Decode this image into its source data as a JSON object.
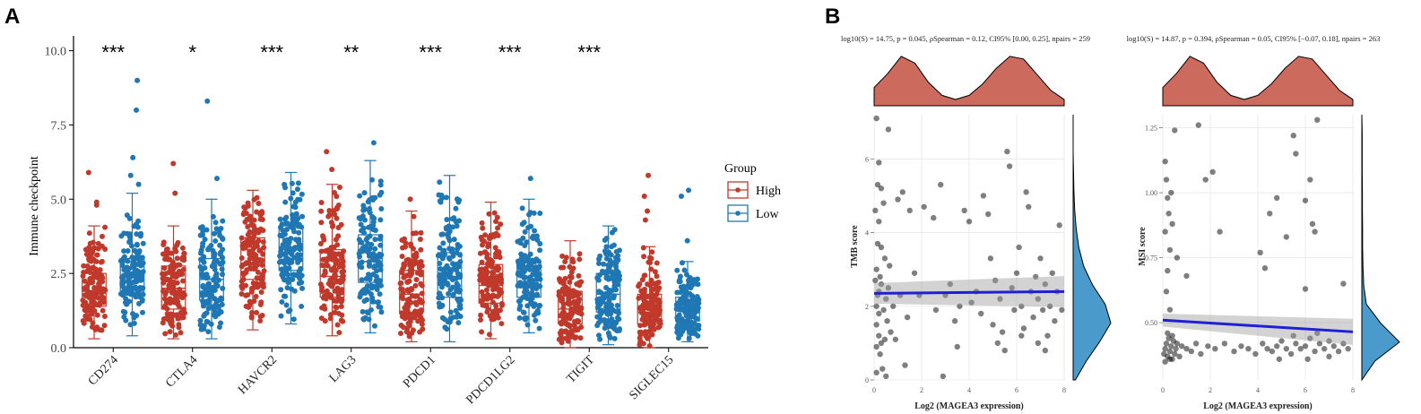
{
  "panels": {
    "a_label": "A",
    "b_label": "B"
  },
  "chart_data": [
    {
      "type": "box",
      "title": "",
      "xlabel": "",
      "ylabel": "Immune checkpoint",
      "ylim": [
        0,
        10.5
      ],
      "yticks": [
        0.0,
        2.5,
        5.0,
        7.5,
        10.0
      ],
      "ytick_labels": [
        "0.0",
        "2.5",
        "5.0",
        "7.5",
        "10.0"
      ],
      "categories": [
        "CD274",
        "CTLA4",
        "HAVCR2",
        "LAG3",
        "PDCD1",
        "PDCD1LG2",
        "TIGIT",
        "SIGLEC15"
      ],
      "significance": [
        "***",
        "*",
        "***",
        "**",
        "***",
        "***",
        "***",
        ""
      ],
      "legend": {
        "title": "Group",
        "entries": [
          "High",
          "Low"
        ],
        "position": "right"
      },
      "colors": {
        "High": "#C0392B",
        "Low": "#1F77B4"
      },
      "series": [
        {
          "name": "High",
          "boxes": [
            {
              "min": 0.3,
              "q1": 1.4,
              "median": 1.9,
              "q3": 2.5,
              "max": 4.1,
              "outliers": [
                4.8,
                4.9,
                5.9
              ]
            },
            {
              "min": 0.3,
              "q1": 1.3,
              "median": 2.0,
              "q3": 2.75,
              "max": 4.1,
              "outliers": [
                5.2,
                6.2
              ]
            },
            {
              "min": 0.6,
              "q1": 2.3,
              "median": 2.8,
              "q3": 3.7,
              "max": 5.3,
              "outliers": []
            },
            {
              "min": 0.4,
              "q1": 1.7,
              "median": 2.4,
              "q3": 3.3,
              "max": 5.5,
              "outliers": [
                6.0,
                6.6
              ]
            },
            {
              "min": 0.2,
              "q1": 1.2,
              "median": 1.8,
              "q3": 2.6,
              "max": 4.6,
              "outliers": [
                5.0
              ]
            },
            {
              "min": 0.3,
              "q1": 1.5,
              "median": 2.1,
              "q3": 2.8,
              "max": 4.9,
              "outliers": []
            },
            {
              "min": 0.0,
              "q1": 0.8,
              "median": 1.3,
              "q3": 1.9,
              "max": 3.6,
              "outliers": []
            },
            {
              "min": 0.0,
              "q1": 0.8,
              "median": 1.2,
              "q3": 1.8,
              "max": 3.4,
              "outliers": [
                4.3,
                4.6,
                5.1,
                5.8
              ]
            }
          ]
        },
        {
          "name": "Low",
          "boxes": [
            {
              "min": 0.4,
              "q1": 1.9,
              "median": 2.4,
              "q3": 3.0,
              "max": 5.2,
              "outliers": [
                5.5,
                5.8,
                6.4,
                8.0,
                9.0
              ]
            },
            {
              "min": 0.3,
              "q1": 1.6,
              "median": 2.3,
              "q3": 3.0,
              "max": 5.0,
              "outliers": [
                5.7,
                8.3
              ]
            },
            {
              "min": 0.8,
              "q1": 2.6,
              "median": 3.3,
              "q3": 4.1,
              "max": 5.9,
              "outliers": []
            },
            {
              "min": 0.5,
              "q1": 2.2,
              "median": 2.9,
              "q3": 3.8,
              "max": 6.3,
              "outliers": [
                6.9
              ]
            },
            {
              "min": 0.2,
              "q1": 1.7,
              "median": 2.4,
              "q3": 3.2,
              "max": 5.8,
              "outliers": []
            },
            {
              "min": 0.5,
              "q1": 1.7,
              "median": 2.4,
              "q3": 2.9,
              "max": 5.0,
              "outliers": [
                5.7
              ]
            },
            {
              "min": 0.1,
              "q1": 1.2,
              "median": 1.8,
              "q3": 2.5,
              "max": 4.1,
              "outliers": []
            },
            {
              "min": 0.2,
              "q1": 0.9,
              "median": 1.3,
              "q3": 1.7,
              "max": 2.9,
              "outliers": [
                3.6,
                5.1,
                5.3
              ]
            }
          ]
        }
      ]
    },
    {
      "type": "scatter",
      "title": "log10(S) = 14.75, p = 0.045, ρSpearman = 0.12, CI95% [0.00, 0.25], npairs = 259",
      "xlabel": "Log2 (MAGEA3 expression)",
      "ylabel": "TMB score",
      "xlim": [
        0,
        8
      ],
      "ylim": [
        0,
        7.2
      ],
      "xticks": [
        0,
        2,
        4,
        6,
        8
      ],
      "xtick_labels": [
        "0",
        "2",
        "4",
        "6",
        "8"
      ],
      "yticks": [
        0,
        2,
        4,
        6
      ],
      "ytick_labels": [
        "0",
        "2",
        "4",
        "6"
      ],
      "regression": {
        "x": [
          0,
          8
        ],
        "y": [
          2.35,
          2.4
        ],
        "ci": [
          0.28,
          0.42
        ]
      },
      "marginal_top": {
        "color": "#CD6A5E",
        "density": [
          0.35,
          0.62,
          0.95,
          0.82,
          0.45,
          0.2,
          0.12,
          0.2,
          0.42,
          0.72,
          0.95,
          0.9,
          0.6,
          0.3,
          0.12
        ]
      },
      "marginal_right": {
        "color": "#4A9BCB",
        "density": [
          0.06,
          0.35,
          0.7,
          1.0,
          0.85,
          0.52,
          0.28,
          0.15,
          0.08,
          0.04,
          0.02,
          0.01,
          0.0,
          0.0,
          0.0
        ]
      },
      "points": [
        [
          0.1,
          1.5
        ],
        [
          0.1,
          2.0
        ],
        [
          0.15,
          2.3
        ],
        [
          0.2,
          1.2
        ],
        [
          0.2,
          1.8
        ],
        [
          0.25,
          0.7
        ],
        [
          0.3,
          2.6
        ],
        [
          0.1,
          3.0
        ],
        [
          0.3,
          3.6
        ],
        [
          0.2,
          4.3
        ],
        [
          0.05,
          4.6
        ],
        [
          0.15,
          5.3
        ],
        [
          0.2,
          5.9
        ],
        [
          0.1,
          7.1
        ],
        [
          0.6,
          6.8
        ],
        [
          0.3,
          5.2
        ],
        [
          0.45,
          1.1
        ],
        [
          0.5,
          2.2
        ],
        [
          0.35,
          0.3
        ],
        [
          0.55,
          1.6
        ],
        [
          0.1,
          0.9
        ],
        [
          0.25,
          2.8
        ],
        [
          0.4,
          1.9
        ],
        [
          0.6,
          2.5
        ],
        [
          0.7,
          1.3
        ],
        [
          0.05,
          2.7
        ],
        [
          0.4,
          4.8
        ],
        [
          0.65,
          3.1
        ],
        [
          0.1,
          0.2
        ],
        [
          0.5,
          0.1
        ],
        [
          0.8,
          2.0
        ],
        [
          0.3,
          1.0
        ],
        [
          0.15,
          3.7
        ],
        [
          0.45,
          3.3
        ],
        [
          0.2,
          2.4
        ],
        [
          1.0,
          4.9
        ],
        [
          1.2,
          5.1
        ],
        [
          1.5,
          4.6
        ],
        [
          1.1,
          2.3
        ],
        [
          1.4,
          1.7
        ],
        [
          0.9,
          1.1
        ],
        [
          1.3,
          0.4
        ],
        [
          1.7,
          2.9
        ],
        [
          1.9,
          2.3
        ],
        [
          2.1,
          4.7
        ],
        [
          2.5,
          4.4
        ],
        [
          2.8,
          5.3
        ],
        [
          2.6,
          1.9
        ],
        [
          3.0,
          2.3
        ],
        [
          2.9,
          0.1
        ],
        [
          3.2,
          2.6
        ],
        [
          3.4,
          1.6
        ],
        [
          3.6,
          2.0
        ],
        [
          3.8,
          4.6
        ],
        [
          4.0,
          4.3
        ],
        [
          3.5,
          0.9
        ],
        [
          4.1,
          2.1
        ],
        [
          4.3,
          2.4
        ],
        [
          4.5,
          1.8
        ],
        [
          4.6,
          5.0
        ],
        [
          4.8,
          4.5
        ],
        [
          4.9,
          3.3
        ],
        [
          5.1,
          2.7
        ],
        [
          5.3,
          2.2
        ],
        [
          5.4,
          1.3
        ],
        [
          5.5,
          0.8
        ],
        [
          5.6,
          6.2
        ],
        [
          5.7,
          5.8
        ],
        [
          5.8,
          2.5
        ],
        [
          5.9,
          1.9
        ],
        [
          6.0,
          2.9
        ],
        [
          6.1,
          3.6
        ],
        [
          6.2,
          2.0
        ],
        [
          6.3,
          1.4
        ],
        [
          6.4,
          5.1
        ],
        [
          6.5,
          4.7
        ],
        [
          6.6,
          2.4
        ],
        [
          6.7,
          1.7
        ],
        [
          6.8,
          2.8
        ],
        [
          6.9,
          2.2
        ],
        [
          7.0,
          3.3
        ],
        [
          7.1,
          1.9
        ],
        [
          7.2,
          2.6
        ],
        [
          7.3,
          1.2
        ],
        [
          7.4,
          2.0
        ],
        [
          7.5,
          2.9
        ],
        [
          7.6,
          1.6
        ],
        [
          7.7,
          2.4
        ],
        [
          7.8,
          4.2
        ],
        [
          7.9,
          1.9
        ],
        [
          5.0,
          1.5
        ],
        [
          5.2,
          1.0
        ],
        [
          6.2,
          1.2
        ],
        [
          6.9,
          1.0
        ],
        [
          7.2,
          0.8
        ]
      ]
    },
    {
      "type": "scatter",
      "title": "log10(S) = 14.87, p = 0.394, ρSpearman = 0.05, CI95% [−0.07, 0.18], npairs = 263",
      "xlabel": "Log2 (MAGEA3 expression)",
      "ylabel": "MSI score",
      "xlim": [
        0,
        8
      ],
      "ylim": [
        0.28,
        1.3
      ],
      "xticks": [
        0,
        2,
        4,
        6,
        8
      ],
      "xtick_labels": [
        "0",
        "2",
        "4",
        "6",
        "8"
      ],
      "yticks": [
        0.5,
        0.75,
        1.0,
        1.25
      ],
      "ytick_labels": [
        "0.50",
        "0.75",
        "1.00",
        "1.25"
      ],
      "regression": {
        "x": [
          0,
          8
        ],
        "y": [
          0.51,
          0.465
        ],
        "ci": [
          0.025,
          0.05
        ]
      },
      "marginal_top": {
        "color": "#CD6A5E",
        "density": [
          0.35,
          0.62,
          0.95,
          0.82,
          0.45,
          0.2,
          0.12,
          0.2,
          0.42,
          0.72,
          0.95,
          0.9,
          0.6,
          0.3,
          0.12
        ]
      },
      "marginal_right": {
        "color": "#4A9BCB",
        "density": [
          0.0,
          0.35,
          1.0,
          0.5,
          0.12,
          0.05,
          0.03,
          0.02,
          0.02,
          0.015,
          0.015,
          0.01,
          0.01,
          0.01,
          0.0
        ]
      },
      "points": [
        [
          0.1,
          1.12
        ],
        [
          0.15,
          1.05
        ],
        [
          0.2,
          0.98
        ],
        [
          0.25,
          0.92
        ],
        [
          0.1,
          0.85
        ],
        [
          0.3,
          0.78
        ],
        [
          0.2,
          0.7
        ],
        [
          0.15,
          0.62
        ],
        [
          0.35,
          1.0
        ],
        [
          0.5,
          1.24
        ],
        [
          0.4,
          0.88
        ],
        [
          0.6,
          0.75
        ],
        [
          0.3,
          0.55
        ],
        [
          1.5,
          1.26
        ],
        [
          1.8,
          1.05
        ],
        [
          2.1,
          1.08
        ],
        [
          2.4,
          0.85
        ],
        [
          1.0,
          0.68
        ],
        [
          4.1,
          0.77
        ],
        [
          4.3,
          0.71
        ],
        [
          4.5,
          0.92
        ],
        [
          4.8,
          0.98
        ],
        [
          5.2,
          0.83
        ],
        [
          5.5,
          1.22
        ],
        [
          5.6,
          1.15
        ],
        [
          6.0,
          0.97
        ],
        [
          6.2,
          1.05
        ],
        [
          6.3,
          0.88
        ],
        [
          6.4,
          0.85
        ],
        [
          6.5,
          1.28
        ],
        [
          6.0,
          0.63
        ],
        [
          7.6,
          0.65
        ],
        [
          0.05,
          0.38
        ],
        [
          0.1,
          0.4
        ],
        [
          0.15,
          0.42
        ],
        [
          0.2,
          0.37
        ],
        [
          0.25,
          0.44
        ],
        [
          0.3,
          0.39
        ],
        [
          0.35,
          0.41
        ],
        [
          0.4,
          0.36
        ],
        [
          0.45,
          0.43
        ],
        [
          0.5,
          0.38
        ],
        [
          0.55,
          0.4
        ],
        [
          0.6,
          0.42
        ],
        [
          0.7,
          0.37
        ],
        [
          0.8,
          0.41
        ],
        [
          0.1,
          0.35
        ],
        [
          0.2,
          0.46
        ],
        [
          0.3,
          0.36
        ],
        [
          0.4,
          0.45
        ],
        [
          1.0,
          0.4
        ],
        [
          1.2,
          0.39
        ],
        [
          1.4,
          0.42
        ],
        [
          1.6,
          0.38
        ],
        [
          1.9,
          0.41
        ],
        [
          2.2,
          0.4
        ],
        [
          2.6,
          0.42
        ],
        [
          3.0,
          0.39
        ],
        [
          3.3,
          0.41
        ],
        [
          3.6,
          0.4
        ],
        [
          3.9,
          0.38
        ],
        [
          4.2,
          0.42
        ],
        [
          4.4,
          0.4
        ],
        [
          4.6,
          0.39
        ],
        [
          4.8,
          0.41
        ],
        [
          5.0,
          0.43
        ],
        [
          5.2,
          0.4
        ],
        [
          5.4,
          0.38
        ],
        [
          5.6,
          0.42
        ],
        [
          5.8,
          0.4
        ],
        [
          6.0,
          0.41
        ],
        [
          6.2,
          0.44
        ],
        [
          6.4,
          0.39
        ],
        [
          6.6,
          0.42
        ],
        [
          6.8,
          0.4
        ],
        [
          7.0,
          0.43
        ],
        [
          7.2,
          0.41
        ],
        [
          7.4,
          0.39
        ],
        [
          7.6,
          0.42
        ],
        [
          7.8,
          0.4
        ],
        [
          5.5,
          0.45
        ],
        [
          6.5,
          0.46
        ],
        [
          7.0,
          0.37
        ],
        [
          4.9,
          0.36
        ],
        [
          6.1,
          0.36
        ]
      ]
    }
  ]
}
